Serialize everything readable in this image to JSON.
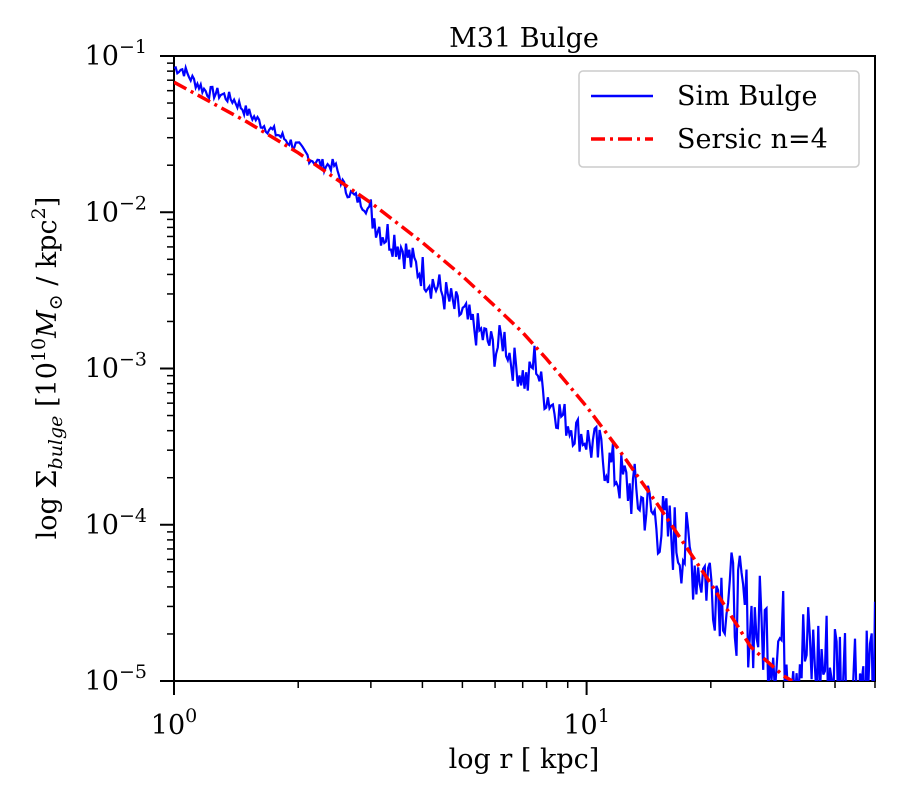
{
  "chart_data": {
    "type": "line",
    "title": "M31 Bulge",
    "xlabel": "log r [ kpc]",
    "ylabel_parts": {
      "prefix": "log Σ",
      "sub": "bulge",
      "mid": " [10",
      "exp": "10",
      "unit": "M",
      "unit_sub": "⊙",
      "tail": " / kpc",
      "tail_sup": "2",
      "close": "]"
    },
    "xscale": "log",
    "yscale": "log",
    "xlim": [
      1,
      50
    ],
    "ylim": [
      1e-05,
      0.1
    ],
    "x_ticks": [
      {
        "value": 1,
        "base": "10",
        "exp": "0"
      },
      {
        "value": 10,
        "base": "10",
        "exp": "1"
      }
    ],
    "y_ticks": [
      {
        "value": 0.1,
        "base": "10",
        "exp": "−1"
      },
      {
        "value": 0.01,
        "base": "10",
        "exp": "−2"
      },
      {
        "value": 0.001,
        "base": "10",
        "exp": "−3"
      },
      {
        "value": 0.0001,
        "base": "10",
        "exp": "−4"
      },
      {
        "value": 1e-05,
        "base": "10",
        "exp": "−5"
      }
    ],
    "legend_position": "top-right",
    "series": [
      {
        "name": "Sim Bulge",
        "color": "#0000ff",
        "style": "solid",
        "noisy_from": 10,
        "x": [
          1.0,
          1.05,
          1.1,
          1.2,
          1.3,
          1.4,
          1.5,
          1.65,
          1.8,
          2.0,
          2.15,
          2.3,
          2.45,
          2.6,
          2.8,
          3.0,
          3.2,
          3.4,
          3.6,
          3.8,
          4.0,
          4.25,
          4.5,
          4.75,
          5.0,
          5.25,
          5.5,
          5.75,
          6.0,
          6.3,
          6.6,
          6.9,
          7.2,
          7.5,
          7.8,
          8.1,
          8.4,
          8.7,
          9.0,
          9.4,
          10.0,
          11.0,
          12.0,
          13.0,
          14.0,
          15.0,
          16.5,
          18.0,
          20.0,
          22.0,
          24.0,
          27.0,
          30.0,
          33.0,
          36.0,
          40.0,
          44.0,
          48.0,
          50.0
        ],
        "y": [
          0.084,
          0.082,
          0.072,
          0.059,
          0.057,
          0.052,
          0.044,
          0.036,
          0.031,
          0.026,
          0.022,
          0.02,
          0.02,
          0.014,
          0.012,
          0.01,
          0.0075,
          0.0068,
          0.0058,
          0.0046,
          0.0042,
          0.0035,
          0.003,
          0.0025,
          0.0022,
          0.0019,
          0.0017,
          0.0015,
          0.0013,
          0.0016,
          0.0011,
          0.00095,
          0.0008,
          0.0012,
          0.00072,
          0.00065,
          0.00055,
          0.0005,
          0.00045,
          0.0004,
          0.00035,
          0.00027,
          0.0002,
          0.00016,
          0.00013,
          0.0001,
          8e-05,
          6e-05,
          4.5e-05,
          3.5e-05,
          2.8e-05,
          2.1e-05,
          1.7e-05,
          1.5e-05,
          1.3e-05,
          1.2e-05,
          1.15e-05,
          1.1e-05,
          1.1e-05
        ]
      },
      {
        "name": "Sersic n=4",
        "color": "#ff0000",
        "style": "dashdot",
        "x": [
          1.0,
          1.5,
          2.0,
          3.0,
          4.0,
          5.0,
          6.0,
          7.0,
          8.0,
          10.0,
          12.0,
          15.0,
          20.0,
          25.0,
          30.0,
          31.5
        ],
        "y": [
          0.068,
          0.038,
          0.024,
          0.0115,
          0.0064,
          0.0039,
          0.0025,
          0.0017,
          0.00115,
          0.00057,
          0.0003,
          0.00013,
          4.2e-05,
          1.65e-05,
          1.08e-05,
          1e-05
        ]
      }
    ]
  }
}
